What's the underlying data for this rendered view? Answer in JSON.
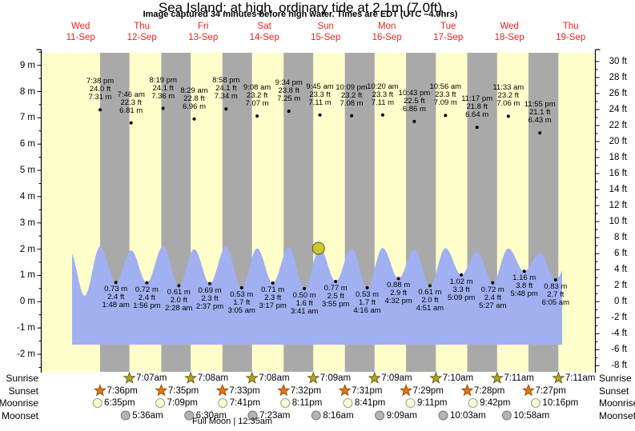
{
  "chart_data": {
    "type": "area",
    "title": "Sea Island: at high  ordinary tide at 2.1m (7.0ft)",
    "subtitle": "Image captured 34 minutes before high water. Times are EDT (UTC –4.0hrs)",
    "days": [
      {
        "dow": "Wed",
        "date": "11-Sep"
      },
      {
        "dow": "Thu",
        "date": "12-Sep"
      },
      {
        "dow": "Fri",
        "date": "13-Sep"
      },
      {
        "dow": "Sat",
        "date": "14-Sep"
      },
      {
        "dow": "Sun",
        "date": "15-Sep"
      },
      {
        "dow": "Mon",
        "date": "16-Sep"
      },
      {
        "dow": "Tue",
        "date": "17-Sep"
      },
      {
        "dow": "Wed",
        "date": "18-Sep"
      },
      {
        "dow": "Thu",
        "date": "19-Sep"
      }
    ],
    "y_axis_left": {
      "unit": "m",
      "min": -2,
      "max": 9,
      "labels": [
        "9 m",
        "8 m",
        "7 m",
        "6 m",
        "5 m",
        "4 m",
        "3 m",
        "2 m",
        "1 m",
        "0 m",
        "-1 m",
        "-2 m"
      ]
    },
    "y_axis_right": {
      "unit": "ft",
      "min": -8,
      "max": 30,
      "labels": [
        "30 ft",
        "28 ft",
        "26 ft",
        "24 ft",
        "22 ft",
        "20 ft",
        "18 ft",
        "16 ft",
        "14 ft",
        "12 ft",
        "10 ft",
        "8 ft",
        "6 ft",
        "4 ft",
        "2 ft",
        "0 ft",
        "-2 ft",
        "-4 ft",
        "-6 ft",
        "-8 ft"
      ]
    },
    "high_tides": [
      {
        "day": 0,
        "time": "7:38 pm",
        "ft": "24.0 ft",
        "m": "7.31 m"
      },
      {
        "day": 1,
        "time": "7:46 am",
        "ft": "22.3 ft",
        "m": "6.81 m"
      },
      {
        "day": 1,
        "time": "8:19 pm",
        "ft": "24.1 ft",
        "m": "7.36 m"
      },
      {
        "day": 2,
        "time": "8:29 am",
        "ft": "22.8 ft",
        "m": "6.96 m"
      },
      {
        "day": 2,
        "time": "8:58 pm",
        "ft": "24.1 ft",
        "m": "7.34 m"
      },
      {
        "day": 3,
        "time": "9:08 am",
        "ft": "23.2 ft",
        "m": "7.07 m"
      },
      {
        "day": 3,
        "time": "9:34 pm",
        "ft": "23.8 ft",
        "m": "7.25 m"
      },
      {
        "day": 4,
        "time": "9:45 am",
        "ft": "23.3 ft",
        "m": "7.11 m"
      },
      {
        "day": 4,
        "time": "10:09 pm",
        "ft": "23.2 ft",
        "m": "7.08 m"
      },
      {
        "day": 5,
        "time": "10:20 am",
        "ft": "23.3 ft",
        "m": "7.11 m"
      },
      {
        "day": 5,
        "time": "10:43 pm",
        "ft": "22.5 ft",
        "m": "6.86 m"
      },
      {
        "day": 6,
        "time": "10:56 am",
        "ft": "23.3 ft",
        "m": "7.09 m"
      },
      {
        "day": 6,
        "time": "11:17 pm",
        "ft": "21.8 ft",
        "m": "6.64 m"
      },
      {
        "day": 7,
        "time": "11:33 am",
        "ft": "23.2 ft",
        "m": "7.06 m"
      },
      {
        "day": 7,
        "time": "11:55 pm",
        "ft": "21.1 ft",
        "m": "6.43 m"
      }
    ],
    "low_tides": [
      {
        "day": 1,
        "time": "1:48 am",
        "m": "0.73 m",
        "ft": "2.4 ft"
      },
      {
        "day": 1,
        "time": "1:56 pm",
        "m": "0.72 m",
        "ft": "2.4 ft"
      },
      {
        "day": 2,
        "time": "2:28 am",
        "m": "0.61 m",
        "ft": "2.0 ft"
      },
      {
        "day": 2,
        "time": "2:37 pm",
        "m": "0.69 m",
        "ft": "2.3 ft"
      },
      {
        "day": 3,
        "time": "3:05 am",
        "m": "0.53 m",
        "ft": "1.7 ft"
      },
      {
        "day": 3,
        "time": "3:17 pm",
        "m": "0.71 m",
        "ft": "2.3 ft"
      },
      {
        "day": 4,
        "time": "3:41 am",
        "m": "0.50 m",
        "ft": "1.6 ft"
      },
      {
        "day": 4,
        "time": "3:55 pm",
        "m": "0.77 m",
        "ft": "2.5 ft"
      },
      {
        "day": 5,
        "time": "4:16 am",
        "m": "0.53 m",
        "ft": "1.7 ft"
      },
      {
        "day": 5,
        "time": "4:32 pm",
        "m": "0.88 m",
        "ft": "2.9 ft"
      },
      {
        "day": 6,
        "time": "4:51 am",
        "m": "0.61 m",
        "ft": "2.0 ft"
      },
      {
        "day": 6,
        "time": "5:09 pm",
        "m": "1.02 m",
        "ft": "3.3 ft"
      },
      {
        "day": 7,
        "time": "5:27 am",
        "m": "0.72 m",
        "ft": "2.4 ft"
      },
      {
        "day": 7,
        "time": "5:48 pm",
        "m": "1.16 m",
        "ft": "3.8 ft"
      },
      {
        "day": 8,
        "time": "6:05 am",
        "m": "0.83 m",
        "ft": "2.7 ft"
      }
    ],
    "now_marker": {
      "day": 4,
      "time": "9:11 am"
    },
    "astro": {
      "rows": [
        {
          "label": "Sunrise",
          "icon": "sunrise-star",
          "events": [
            {
              "day": 1,
              "time": "7:07am"
            },
            {
              "day": 2,
              "time": "7:08am"
            },
            {
              "day": 3,
              "time": "7:08am"
            },
            {
              "day": 4,
              "time": "7:09am"
            },
            {
              "day": 5,
              "time": "7:09am"
            },
            {
              "day": 6,
              "time": "7:10am"
            },
            {
              "day": 7,
              "time": "7:11am"
            },
            {
              "day": 8,
              "time": "7:11am"
            }
          ]
        },
        {
          "label": "Sunset",
          "icon": "sunset-star",
          "events": [
            {
              "day": 0,
              "time": "7:36pm"
            },
            {
              "day": 1,
              "time": "7:35pm"
            },
            {
              "day": 2,
              "time": "7:33pm"
            },
            {
              "day": 3,
              "time": "7:32pm"
            },
            {
              "day": 4,
              "time": "7:31pm"
            },
            {
              "day": 5,
              "time": "7:29pm"
            },
            {
              "day": 6,
              "time": "7:28pm"
            },
            {
              "day": 7,
              "time": "7:27pm"
            }
          ]
        },
        {
          "label": "Moonrise",
          "icon": "moonrise-circle",
          "events": [
            {
              "day": 0,
              "time": "6:35pm"
            },
            {
              "day": 1,
              "time": "7:09pm"
            },
            {
              "day": 2,
              "time": "7:41pm"
            },
            {
              "day": 3,
              "time": "8:11pm"
            },
            {
              "day": 4,
              "time": "8:41pm"
            },
            {
              "day": 5,
              "time": "9:11pm"
            },
            {
              "day": 6,
              "time": "9:42pm"
            },
            {
              "day": 7,
              "time": "10:16pm"
            }
          ]
        },
        {
          "label": "Moonset",
          "icon": "moonset-circle",
          "events": [
            {
              "day": 1,
              "time": "5:36am"
            },
            {
              "day": 2,
              "time": "6:30am"
            },
            {
              "day": 3,
              "time": "7:23am"
            },
            {
              "day": 4,
              "time": "8:16am"
            },
            {
              "day": 5,
              "time": "9:09am"
            },
            {
              "day": 6,
              "time": "10:03am"
            },
            {
              "day": 7,
              "time": "10:58am"
            }
          ]
        }
      ],
      "full_moon": "Full Moon | 12:35am"
    },
    "colors": {
      "day_band": "#ffffcc",
      "night_band": "#a9a9a9",
      "water": "#a0b0f0",
      "label_red": "#f22020",
      "sunrise_star": "#b3a125",
      "sunset_star": "#e2761b",
      "moonrise_fill": "#ffffd0",
      "moonset_fill": "#b4b4b4",
      "marker": "#c8c832"
    }
  }
}
